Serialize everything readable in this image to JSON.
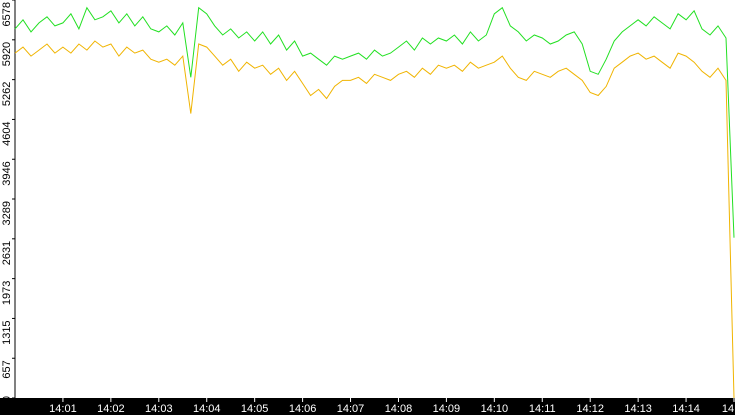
{
  "chart_data": {
    "type": "line",
    "x": [
      0,
      10,
      20,
      30,
      40,
      50,
      60,
      70,
      80,
      90,
      100,
      110,
      120,
      130,
      140,
      150,
      160,
      170,
      180,
      190,
      200,
      210,
      220,
      230,
      240,
      250,
      260,
      270,
      280,
      290,
      300,
      310,
      320,
      330,
      340,
      350,
      360,
      370,
      380,
      390,
      400,
      410,
      420,
      430,
      440,
      450,
      460,
      470,
      480,
      490,
      500,
      510,
      520,
      530,
      540,
      550,
      560,
      570,
      580,
      590,
      600,
      610,
      620,
      630,
      640,
      650,
      660,
      670,
      680,
      690,
      700,
      710,
      720,
      730,
      740,
      750,
      760,
      770,
      780,
      790,
      800,
      810,
      820,
      830,
      840,
      850,
      860,
      870,
      880,
      890,
      900
    ],
    "series": [
      {
        "color": "#22e022",
        "values": [
          6100,
          6250,
          6050,
          6200,
          6300,
          6150,
          6200,
          6350,
          6100,
          6450,
          6250,
          6300,
          6400,
          6200,
          6350,
          6150,
          6300,
          6100,
          6050,
          6150,
          6000,
          6200,
          5300,
          6450,
          6350,
          6150,
          6000,
          6100,
          5950,
          6050,
          5900,
          6050,
          5850,
          6000,
          5750,
          5900,
          5650,
          5700,
          5600,
          5500,
          5650,
          5600,
          5650,
          5700,
          5600,
          5750,
          5650,
          5700,
          5800,
          5900,
          5750,
          5950,
          5850,
          5950,
          5900,
          6000,
          5850,
          6050,
          5900,
          6000,
          6350,
          6450,
          6150,
          6050,
          5900,
          6000,
          5950,
          5850,
          5900,
          6000,
          6050,
          5850,
          5400,
          5350,
          5600,
          5900,
          6050,
          6150,
          6250,
          6150,
          6300,
          6200,
          6100,
          6350,
          6250,
          6400,
          6100,
          6000,
          6150,
          5950,
          2650
        ]
      },
      {
        "color": "#f0b400",
        "values": [
          5700,
          5800,
          5650,
          5750,
          5850,
          5700,
          5800,
          5700,
          5850,
          5750,
          5900,
          5800,
          5850,
          5650,
          5800,
          5700,
          5750,
          5600,
          5550,
          5600,
          5500,
          5650,
          4700,
          5850,
          5800,
          5650,
          5500,
          5600,
          5400,
          5550,
          5450,
          5500,
          5350,
          5450,
          5250,
          5400,
          5200,
          5000,
          5100,
          4950,
          5150,
          5250,
          5250,
          5300,
          5200,
          5350,
          5300,
          5250,
          5350,
          5400,
          5300,
          5450,
          5350,
          5500,
          5450,
          5500,
          5400,
          5550,
          5450,
          5500,
          5550,
          5650,
          5450,
          5300,
          5250,
          5400,
          5350,
          5300,
          5400,
          5450,
          5350,
          5250,
          5050,
          5000,
          5150,
          5450,
          5550,
          5650,
          5700,
          5600,
          5650,
          5550,
          5450,
          5700,
          5650,
          5550,
          5400,
          5300,
          5450,
          5250,
          0
        ]
      }
    ],
    "xlim": [
      0,
      900
    ],
    "xticks": [
      {
        "value": 60,
        "label": "14:01"
      },
      {
        "value": 120,
        "label": "14:02"
      },
      {
        "value": 180,
        "label": "14:03"
      },
      {
        "value": 240,
        "label": "14:04"
      },
      {
        "value": 300,
        "label": "14:05"
      },
      {
        "value": 360,
        "label": "14:06"
      },
      {
        "value": 420,
        "label": "14:07"
      },
      {
        "value": 480,
        "label": "14:08"
      },
      {
        "value": 540,
        "label": "14:09"
      },
      {
        "value": 600,
        "label": "14:10"
      },
      {
        "value": 660,
        "label": "14:11"
      },
      {
        "value": 720,
        "label": "14:12"
      },
      {
        "value": 780,
        "label": "14:13"
      },
      {
        "value": 840,
        "label": "14:14"
      },
      {
        "value": 900,
        "label": "14"
      }
    ],
    "ylim": [
      0,
      6578
    ],
    "yticks": [
      0,
      657,
      1315,
      1973,
      2631,
      3289,
      3946,
      4604,
      5262,
      5920,
      6578
    ]
  }
}
